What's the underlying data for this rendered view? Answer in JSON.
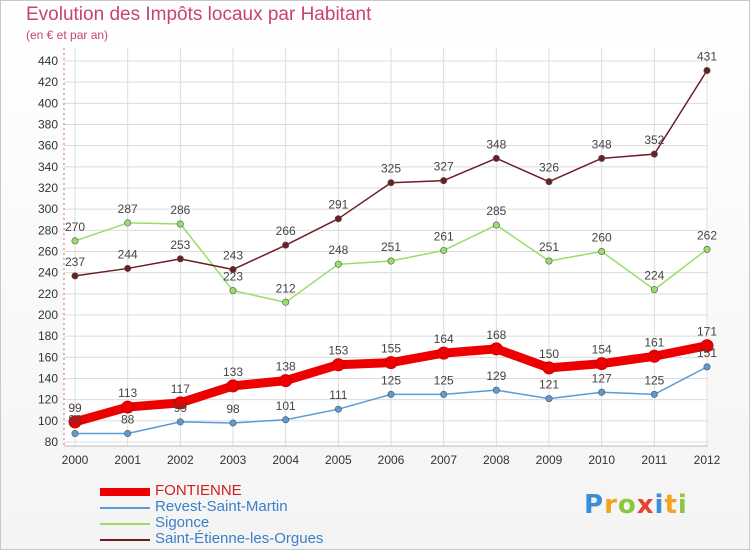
{
  "title": "Evolution des Impôts locaux par Habitant",
  "subtitle": "(en € et par an)",
  "logo_letters": [
    {
      "ch": "P",
      "color": "#3a8fd6"
    },
    {
      "ch": "r",
      "color": "#f2a51a"
    },
    {
      "ch": "o",
      "color": "#8cc63f"
    },
    {
      "ch": "x",
      "color": "#e8432e"
    },
    {
      "ch": "i",
      "color": "#3a8fd6"
    },
    {
      "ch": "t",
      "color": "#f2a51a"
    },
    {
      "ch": "i",
      "color": "#8cc63f"
    }
  ],
  "chart_data": {
    "type": "line",
    "x": [
      "2000",
      "2001",
      "2002",
      "2003",
      "2004",
      "2005",
      "2006",
      "2007",
      "2008",
      "2009",
      "2010",
      "2011",
      "2012"
    ],
    "ylim": [
      80,
      440
    ],
    "yticks": [
      80,
      100,
      120,
      140,
      160,
      180,
      200,
      220,
      240,
      260,
      280,
      300,
      320,
      340,
      360,
      380,
      400,
      420,
      440
    ],
    "grid": true,
    "legend_position": "bottom-left",
    "series": [
      {
        "name": "FONTIENNE",
        "color": "#ee0000",
        "thick": true,
        "values": [
          99,
          113,
          117,
          133,
          138,
          153,
          155,
          164,
          168,
          150,
          154,
          161,
          171
        ]
      },
      {
        "name": "Revest-Saint-Martin",
        "color": "#5b9bd5",
        "thick": false,
        "values": [
          88,
          88,
          99,
          98,
          101,
          111,
          125,
          125,
          129,
          121,
          127,
          125,
          151
        ]
      },
      {
        "name": "Sigonce",
        "color": "#99dd66",
        "thick": false,
        "values": [
          270,
          287,
          286,
          223,
          212,
          248,
          251,
          261,
          285,
          251,
          260,
          224,
          262
        ]
      },
      {
        "name": "Saint-Étienne-les-Orgues",
        "color": "#6b1f25",
        "thick": false,
        "values": [
          237,
          244,
          253,
          243,
          266,
          291,
          325,
          327,
          348,
          326,
          348,
          352,
          431
        ]
      }
    ]
  }
}
